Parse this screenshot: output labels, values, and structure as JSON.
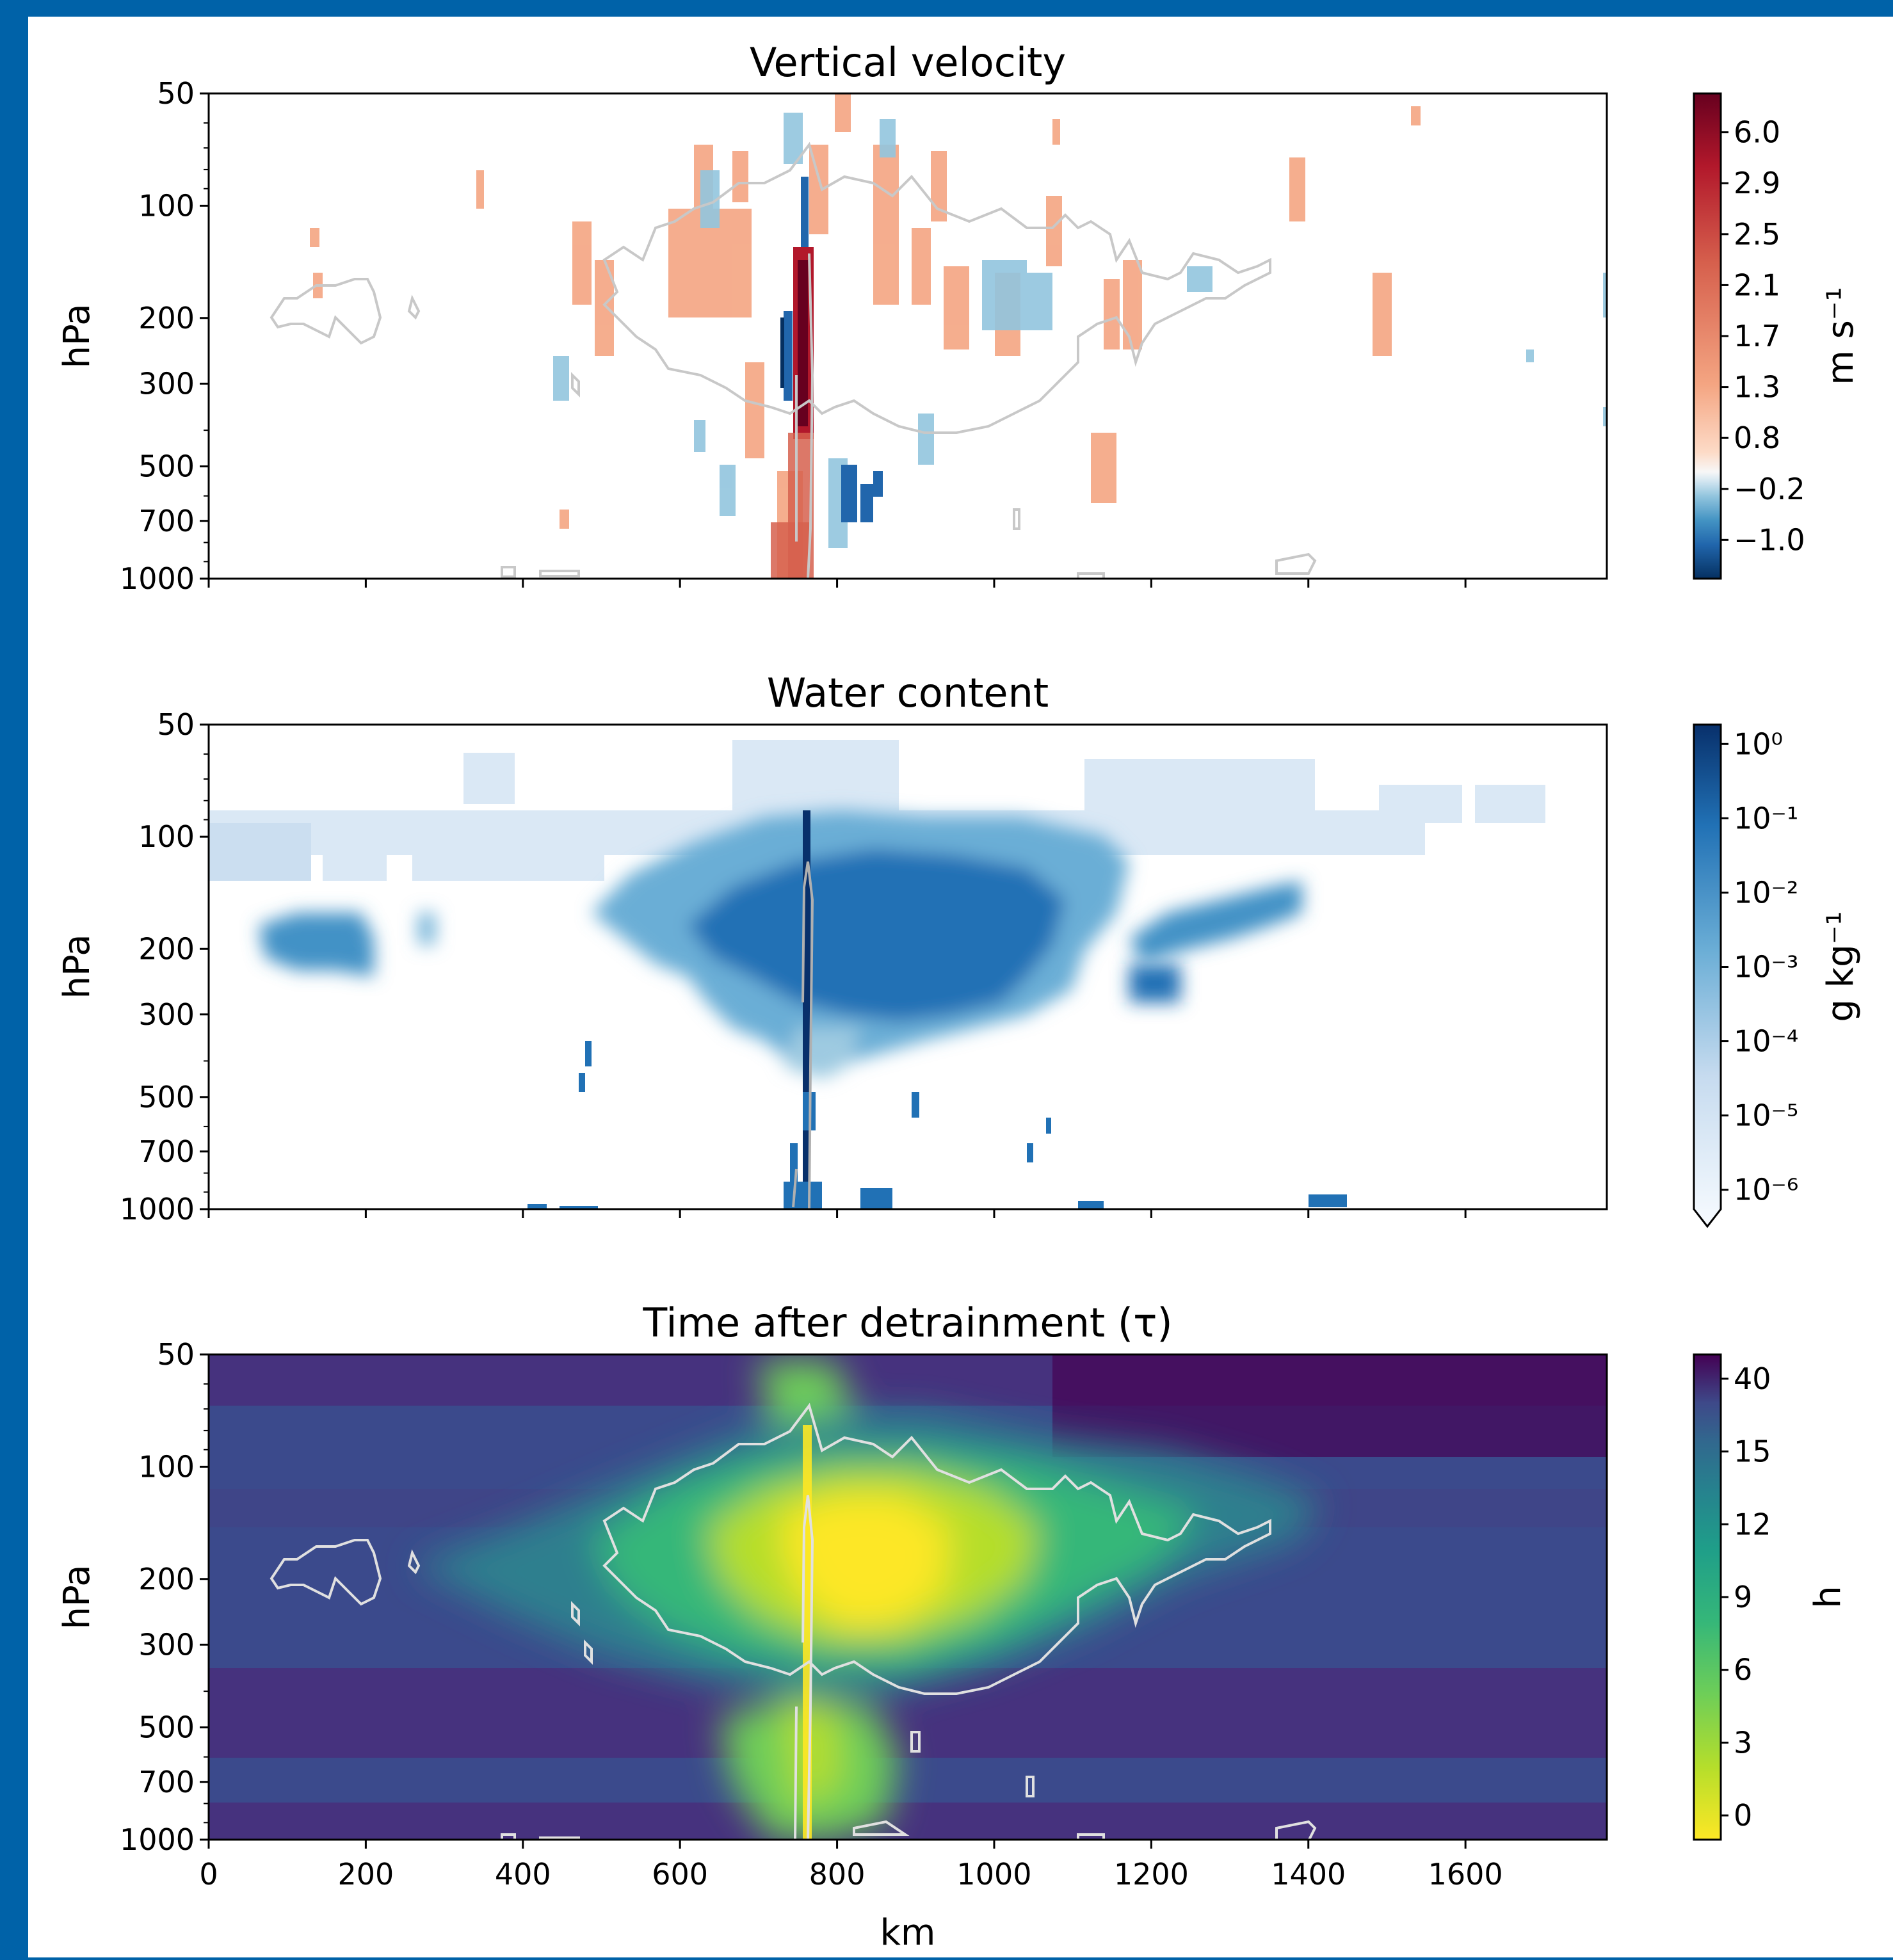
{
  "chart_data": [
    {
      "type": "heatmap",
      "title": "Vertical velocity",
      "ylabel": "hPa",
      "xlabel": "",
      "yscale": "log",
      "yticks": [
        "50",
        "100",
        "200",
        "300",
        "500",
        "700",
        "1000"
      ],
      "xticks": [
        0,
        200,
        400,
        600,
        800,
        1000,
        1200,
        1400,
        1600
      ],
      "xlim": [
        0,
        1780
      ],
      "ylim": [
        1000,
        50
      ],
      "colorbar": {
        "label": "m s$^{-1}$",
        "label_text": "m s⁻¹",
        "colormap": "RdBu_r",
        "ticks": [
          "6.0",
          "2.9",
          "2.5",
          "2.1",
          "1.7",
          "1.3",
          "0.8",
          "−0.2",
          "−1.0"
        ]
      },
      "overlay_contour": "cloud boundary (light grey)",
      "features": [
        {
          "x_km": 722,
          "p_hPa": [
            150,
            1000
          ],
          "value": "strong updraft (>6 m s⁻¹)"
        },
        {
          "x_km": 700,
          "p_hPa": [
            120,
            300
          ],
          "value": "downdraft (~−1.0 m s⁻¹)"
        }
      ]
    },
    {
      "type": "heatmap",
      "title": "Water content",
      "ylabel": "hPa",
      "xlabel": "",
      "yscale": "log",
      "yticks": [
        "50",
        "100",
        "200",
        "300",
        "500",
        "700",
        "1000"
      ],
      "xticks": [
        0,
        200,
        400,
        600,
        800,
        1000,
        1200,
        1400,
        1600
      ],
      "xlim": [
        0,
        1780
      ],
      "ylim": [
        1000,
        50
      ],
      "colorbar": {
        "label": "g kg$^{-1}$",
        "label_text": "g kg⁻¹",
        "colormap": "Blues",
        "scale": "log",
        "ticks": [
          "10⁰",
          "10⁻¹",
          "10⁻²",
          "10⁻³",
          "10⁻⁴",
          "10⁻⁵",
          "10⁻⁶"
        ]
      },
      "features": [
        {
          "x_km": [
            460,
            1140
          ],
          "p_hPa": [
            85,
            420
          ],
          "value": "anvil cloud 10⁻² – 10⁻¹ g kg⁻¹"
        },
        {
          "x_km": [
            60,
            190
          ],
          "p_hPa": [
            150,
            240
          ],
          "value": "~10⁻² g kg⁻¹"
        },
        {
          "x_km": [
            1140,
            1350
          ],
          "p_hPa": [
            130,
            220
          ],
          "value": "~10⁻² g kg⁻¹"
        }
      ]
    },
    {
      "type": "heatmap",
      "title": "Time after detrainment (τ)",
      "ylabel": "hPa",
      "xlabel": "km",
      "yscale": "log",
      "yticks": [
        "50",
        "100",
        "200",
        "300",
        "500",
        "700",
        "1000"
      ],
      "xticks": [
        "0",
        "200",
        "400",
        "600",
        "800",
        "1000",
        "1200",
        "1400",
        "1600"
      ],
      "xlim": [
        0,
        1780
      ],
      "ylim": [
        1000,
        50
      ],
      "colorbar": {
        "label": "h",
        "colormap": "viridis_r",
        "ticks": [
          "40",
          "15",
          "12",
          "9",
          "6",
          "3",
          "0"
        ]
      },
      "features": [
        {
          "x_km": [
            560,
            870
          ],
          "p_hPa": [
            100,
            300
          ],
          "value": "τ ≈ 0–2 h"
        },
        {
          "x_km": [
            0,
            1780
          ],
          "p_hPa": [
            400,
            700
          ],
          "value": "τ > 40 h"
        }
      ]
    }
  ]
}
